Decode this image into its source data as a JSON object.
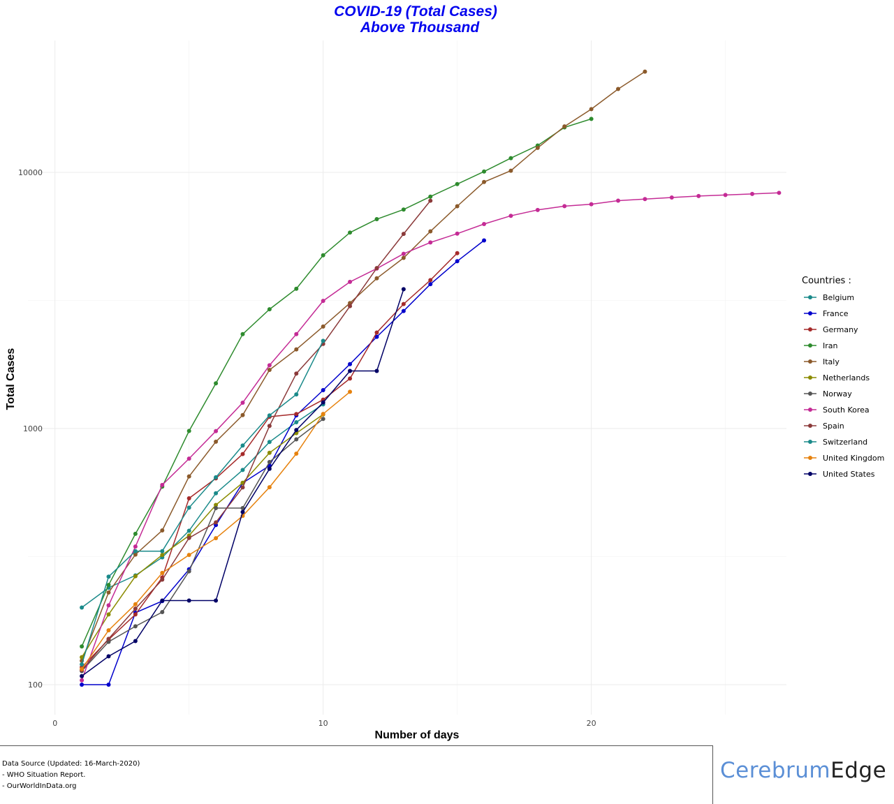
{
  "chart_data": {
    "type": "line",
    "title": "COVID-19 (Total Cases)",
    "subtitle": "Above Thousand",
    "xlabel": "Number of days",
    "ylabel": "Total Cases",
    "y_scale": "log10",
    "xlim": [
      0,
      27
    ],
    "ylim": [
      75,
      22000
    ],
    "x_ticks": [
      0,
      10,
      20
    ],
    "y_ticks": [
      100,
      1000,
      10000
    ],
    "y_tick_labels": [
      "100",
      "1000",
      "10000"
    ],
    "grid": true,
    "legend_title": "Countries :",
    "legend_position": "right",
    "series": [
      {
        "name": "Belgium",
        "color": "#1a8a8a",
        "x": [
          1,
          2,
          3,
          4,
          5,
          6,
          7,
          8,
          9,
          10
        ],
        "y": [
          200,
          239,
          267,
          314,
          399,
          559,
          689,
          886,
          1058,
          1243
        ]
      },
      {
        "name": "France",
        "color": "#0000cc",
        "x": [
          1,
          2,
          3,
          4,
          5,
          6,
          7,
          8,
          9,
          10,
          11,
          12,
          13,
          14,
          15,
          16
        ],
        "y": [
          100,
          100,
          191,
          212,
          282,
          420,
          613,
          716,
          1126,
          1412,
          1784,
          2281,
          2876,
          3661,
          4499,
          5423
        ]
      },
      {
        "name": "Germany",
        "color": "#a52a2a",
        "x": [
          1,
          2,
          3,
          4,
          5,
          6,
          7,
          8,
          9,
          10,
          11,
          12,
          13,
          14,
          15
        ],
        "y": [
          117,
          150,
          188,
          262,
          534,
          639,
          795,
          1112,
          1139,
          1296,
          1567,
          2369,
          3062,
          3795,
          4838
        ]
      },
      {
        "name": "Iran",
        "color": "#2e8b2e",
        "x": [
          1,
          2,
          3,
          4,
          5,
          6,
          7,
          8,
          9,
          10,
          11,
          12,
          13,
          14,
          15,
          16,
          17,
          18,
          19,
          20
        ],
        "y": [
          141,
          245,
          388,
          593,
          978,
          1501,
          2336,
          2922,
          3513,
          4747,
          5823,
          6566,
          7161,
          8042,
          9000,
          10075,
          11364,
          12729,
          14991,
          16169
        ]
      },
      {
        "name": "Italy",
        "color": "#8b5a2b",
        "x": [
          1,
          2,
          3,
          4,
          5,
          6,
          7,
          8,
          9,
          10,
          11,
          12,
          13,
          14,
          15,
          16,
          17,
          18,
          19,
          20,
          21,
          22
        ],
        "y": [
          124,
          229,
          322,
          400,
          650,
          888,
          1128,
          1694,
          2036,
          2502,
          3089,
          3858,
          4636,
          5883,
          7375,
          9172,
          10149,
          12462,
          15113,
          17660,
          21157,
          24747
        ]
      },
      {
        "name": "Netherlands",
        "color": "#8b8b00",
        "x": [
          1,
          2,
          3,
          4,
          5,
          6,
          7,
          8,
          9,
          10
        ],
        "y": [
          128,
          188,
          265,
          321,
          382,
          503,
          614,
          804,
          959,
          1135
        ]
      },
      {
        "name": "Norway",
        "color": "#555555",
        "x": [
          1,
          2,
          3,
          4,
          5,
          6,
          7,
          8,
          9,
          10
        ],
        "y": [
          113,
          147,
          169,
          192,
          277,
          489,
          489,
          740,
          907,
          1090
        ]
      },
      {
        "name": "South Korea",
        "color": "#c42b95",
        "x": [
          1,
          2,
          3,
          4,
          5,
          6,
          7,
          8,
          9,
          10,
          11,
          12,
          13,
          14,
          15,
          16,
          17,
          18,
          19,
          20,
          21,
          22,
          23,
          24,
          25,
          26,
          27
        ],
        "y": [
          104,
          204,
          346,
          602,
          763,
          977,
          1261,
          1766,
          2337,
          3150,
          3736,
          4212,
          4812,
          5328,
          5766,
          6284,
          6767,
          7134,
          7382,
          7513,
          7755,
          7869,
          7979,
          8086,
          8162,
          8236,
          8320
        ]
      },
      {
        "name": "Spain",
        "color": "#8b3a3a",
        "x": [
          1,
          2,
          3,
          4,
          5,
          6,
          7,
          8,
          9,
          10,
          11,
          12,
          13,
          14
        ],
        "y": [
          114,
          151,
          198,
          257,
          374,
          430,
          589,
          1024,
          1639,
          2140,
          3004,
          4231,
          5753,
          7753
        ]
      },
      {
        "name": "Switzerland",
        "color": "#1a8a8a",
        "x": [
          1,
          2,
          3,
          4,
          5,
          6,
          7,
          8,
          9,
          10
        ],
        "y": [
          120,
          264,
          332,
          332,
          491,
          645,
          858,
          1125,
          1359,
          2200
        ]
      },
      {
        "name": "United Kingdom",
        "color": "#e6820e",
        "x": [
          1,
          2,
          3,
          4,
          5,
          6,
          7,
          8,
          9,
          10,
          11
        ],
        "y": [
          115,
          163,
          206,
          273,
          321,
          373,
          456,
          590,
          798,
          1140,
          1391
        ]
      },
      {
        "name": "United States",
        "color": "#000066",
        "x": [
          1,
          2,
          3,
          4,
          5,
          6,
          7,
          8,
          9,
          10,
          11,
          12,
          13
        ],
        "y": [
          108,
          129,
          148,
          213,
          213,
          213,
          472,
          696,
          987,
          1264,
          1678,
          1678,
          3499
        ]
      }
    ]
  },
  "footer": {
    "source_title": "Data Source (Updated: 16-March-2020)",
    "source_1": "- WHO Situation Report.",
    "source_2": "- OurWorldInData.org"
  },
  "brand": {
    "part1": "Cerebrum",
    "part2": "Edge"
  }
}
